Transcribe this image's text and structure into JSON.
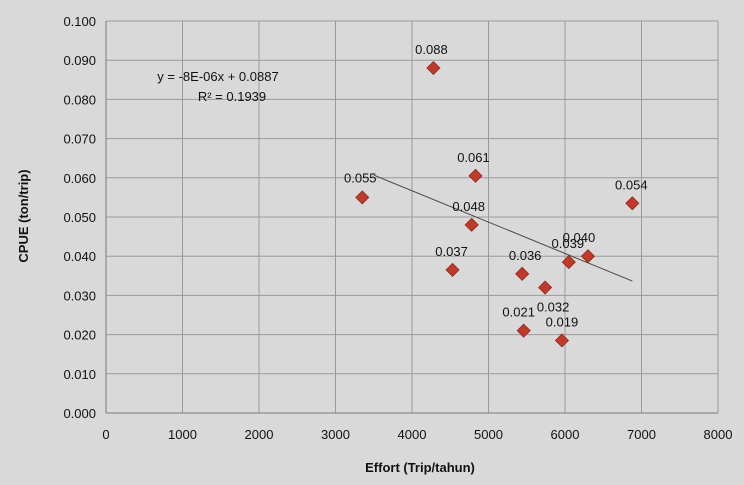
{
  "chart_data": {
    "type": "scatter",
    "xlabel": "Effort (Trip/tahun)",
    "ylabel": "CPUE (ton/trip)",
    "xlim": [
      0,
      8000
    ],
    "ylim": [
      0.0,
      0.1
    ],
    "x_ticks": [
      "0",
      "1000",
      "2000",
      "3000",
      "4000",
      "5000",
      "6000",
      "7000",
      "8000"
    ],
    "y_ticks": [
      "0.000",
      "0.010",
      "0.020",
      "0.030",
      "0.040",
      "0.050",
      "0.060",
      "0.070",
      "0.080",
      "0.090",
      "0.100"
    ],
    "grid": true,
    "points": [
      {
        "x": 3350,
        "y": 0.055,
        "label": "0.055"
      },
      {
        "x": 4280,
        "y": 0.088,
        "label": "0.088"
      },
      {
        "x": 4830,
        "y": 0.0605,
        "label": "0.061"
      },
      {
        "x": 4780,
        "y": 0.048,
        "label": "0.048"
      },
      {
        "x": 4530,
        "y": 0.0365,
        "label": "0.037"
      },
      {
        "x": 5440,
        "y": 0.0355,
        "label": "0.036"
      },
      {
        "x": 5460,
        "y": 0.021,
        "label": "0.021"
      },
      {
        "x": 5740,
        "y": 0.032,
        "label": "0.032"
      },
      {
        "x": 5960,
        "y": 0.0185,
        "label": "0.019"
      },
      {
        "x": 6050,
        "y": 0.0385,
        "label": "0.039"
      },
      {
        "x": 6300,
        "y": 0.04,
        "label": "0.040"
      },
      {
        "x": 6880,
        "y": 0.0535,
        "label": "0.054"
      }
    ],
    "trendline": {
      "x_start": 3500,
      "x_end": 6880
    },
    "equation": "y = -8E-06x + 0.0887",
    "r_squared": "R² = 0.1939",
    "colors": {
      "marker": "#c0392b",
      "marker_stroke": "#8e2a1e",
      "background": "#d9d9d9",
      "grid": "#9a9a9a",
      "trendline": "#4a4a4a"
    }
  }
}
